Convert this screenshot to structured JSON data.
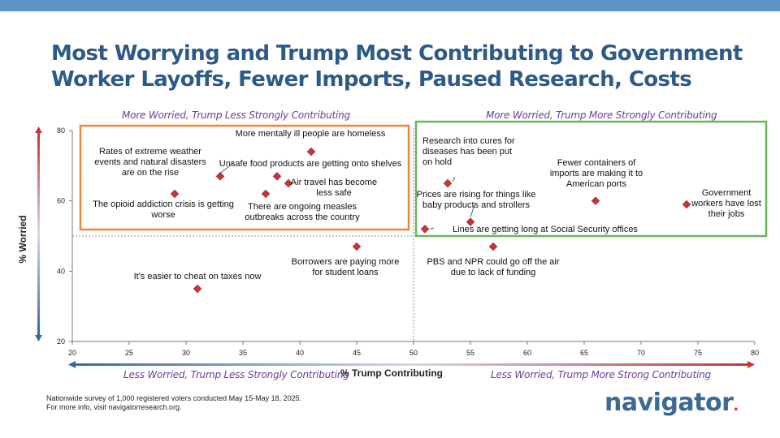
{
  "header": {
    "title_line1": "Most Worrying and Trump Most Contributing to Government",
    "title_line2": "Worker Layoffs, Fewer Imports, Paused Research, Costs"
  },
  "quadrants": {
    "top_left": "More Worried, Trump Less Strongly Contributing",
    "top_right": "More Worried, Trump More Strongly Contributing",
    "bottom_left": "Less Worried, Trump Less Strongly Contributing",
    "bottom_right": "Less Worried, Trump More Strong Contributing"
  },
  "colors": {
    "title": "#2e5a87",
    "quadrant_text": "#6a3d9a",
    "marker": "#c0363a",
    "orange_box": "#e8883a",
    "green_box": "#6db35e",
    "axis_gradient_start": "#2f6aa8",
    "axis_gradient_end": "#c0363a"
  },
  "chart_data": {
    "type": "scatter",
    "xlabel": "% Trump Contributing",
    "ylabel": "% Worried",
    "xlim": [
      20,
      80
    ],
    "ylim": [
      20,
      80
    ],
    "xticks": [
      20,
      25,
      30,
      35,
      40,
      45,
      50,
      55,
      60,
      65,
      70,
      75,
      80
    ],
    "yticks": [
      20,
      40,
      60,
      80
    ],
    "reference_lines": {
      "x": 50,
      "y": 50
    },
    "grid": false,
    "points": [
      {
        "label": "More mentally ill people are homeless",
        "x": 41,
        "y": 74
      },
      {
        "label": "Rates of extreme weather events and natural disasters are on the rise",
        "x": 33,
        "y": 67
      },
      {
        "label": "Unsafe food products are getting onto shelves",
        "x": 38,
        "y": 67
      },
      {
        "label": "Air travel has become less safe",
        "x": 39,
        "y": 65
      },
      {
        "label": "There are ongoing measles outbreaks across the country",
        "x": 37,
        "y": 62
      },
      {
        "label": "The opioid addiction crisis is getting worse",
        "x": 29,
        "y": 62
      },
      {
        "label": "Borrowers are paying more for student loans",
        "x": 45,
        "y": 47
      },
      {
        "label": "It's easier to cheat on taxes now",
        "x": 31,
        "y": 35
      },
      {
        "label": "Research into cures for diseases has been put on hold",
        "x": 53,
        "y": 65
      },
      {
        "label": "Prices are rising for things like baby products and strollers",
        "x": 55,
        "y": 54
      },
      {
        "label": "Lines are getting long at Social Security offices",
        "x": 51,
        "y": 52
      },
      {
        "label": "PBS and NPR could go off the air due to lack of funding",
        "x": 57,
        "y": 47
      },
      {
        "label": "Fewer containers of imports are making it to American ports",
        "x": 66,
        "y": 60
      },
      {
        "label": "Government workers have lost their jobs",
        "x": 74,
        "y": 59
      }
    ]
  },
  "footnote": {
    "line1": "Nationwide survey of 1,000 registered voters conducted May 15-May 18, 2025.",
    "line2": "For more info, visit navigatorresearch.org."
  },
  "brand": {
    "name": "navigator",
    "dot": "."
  }
}
